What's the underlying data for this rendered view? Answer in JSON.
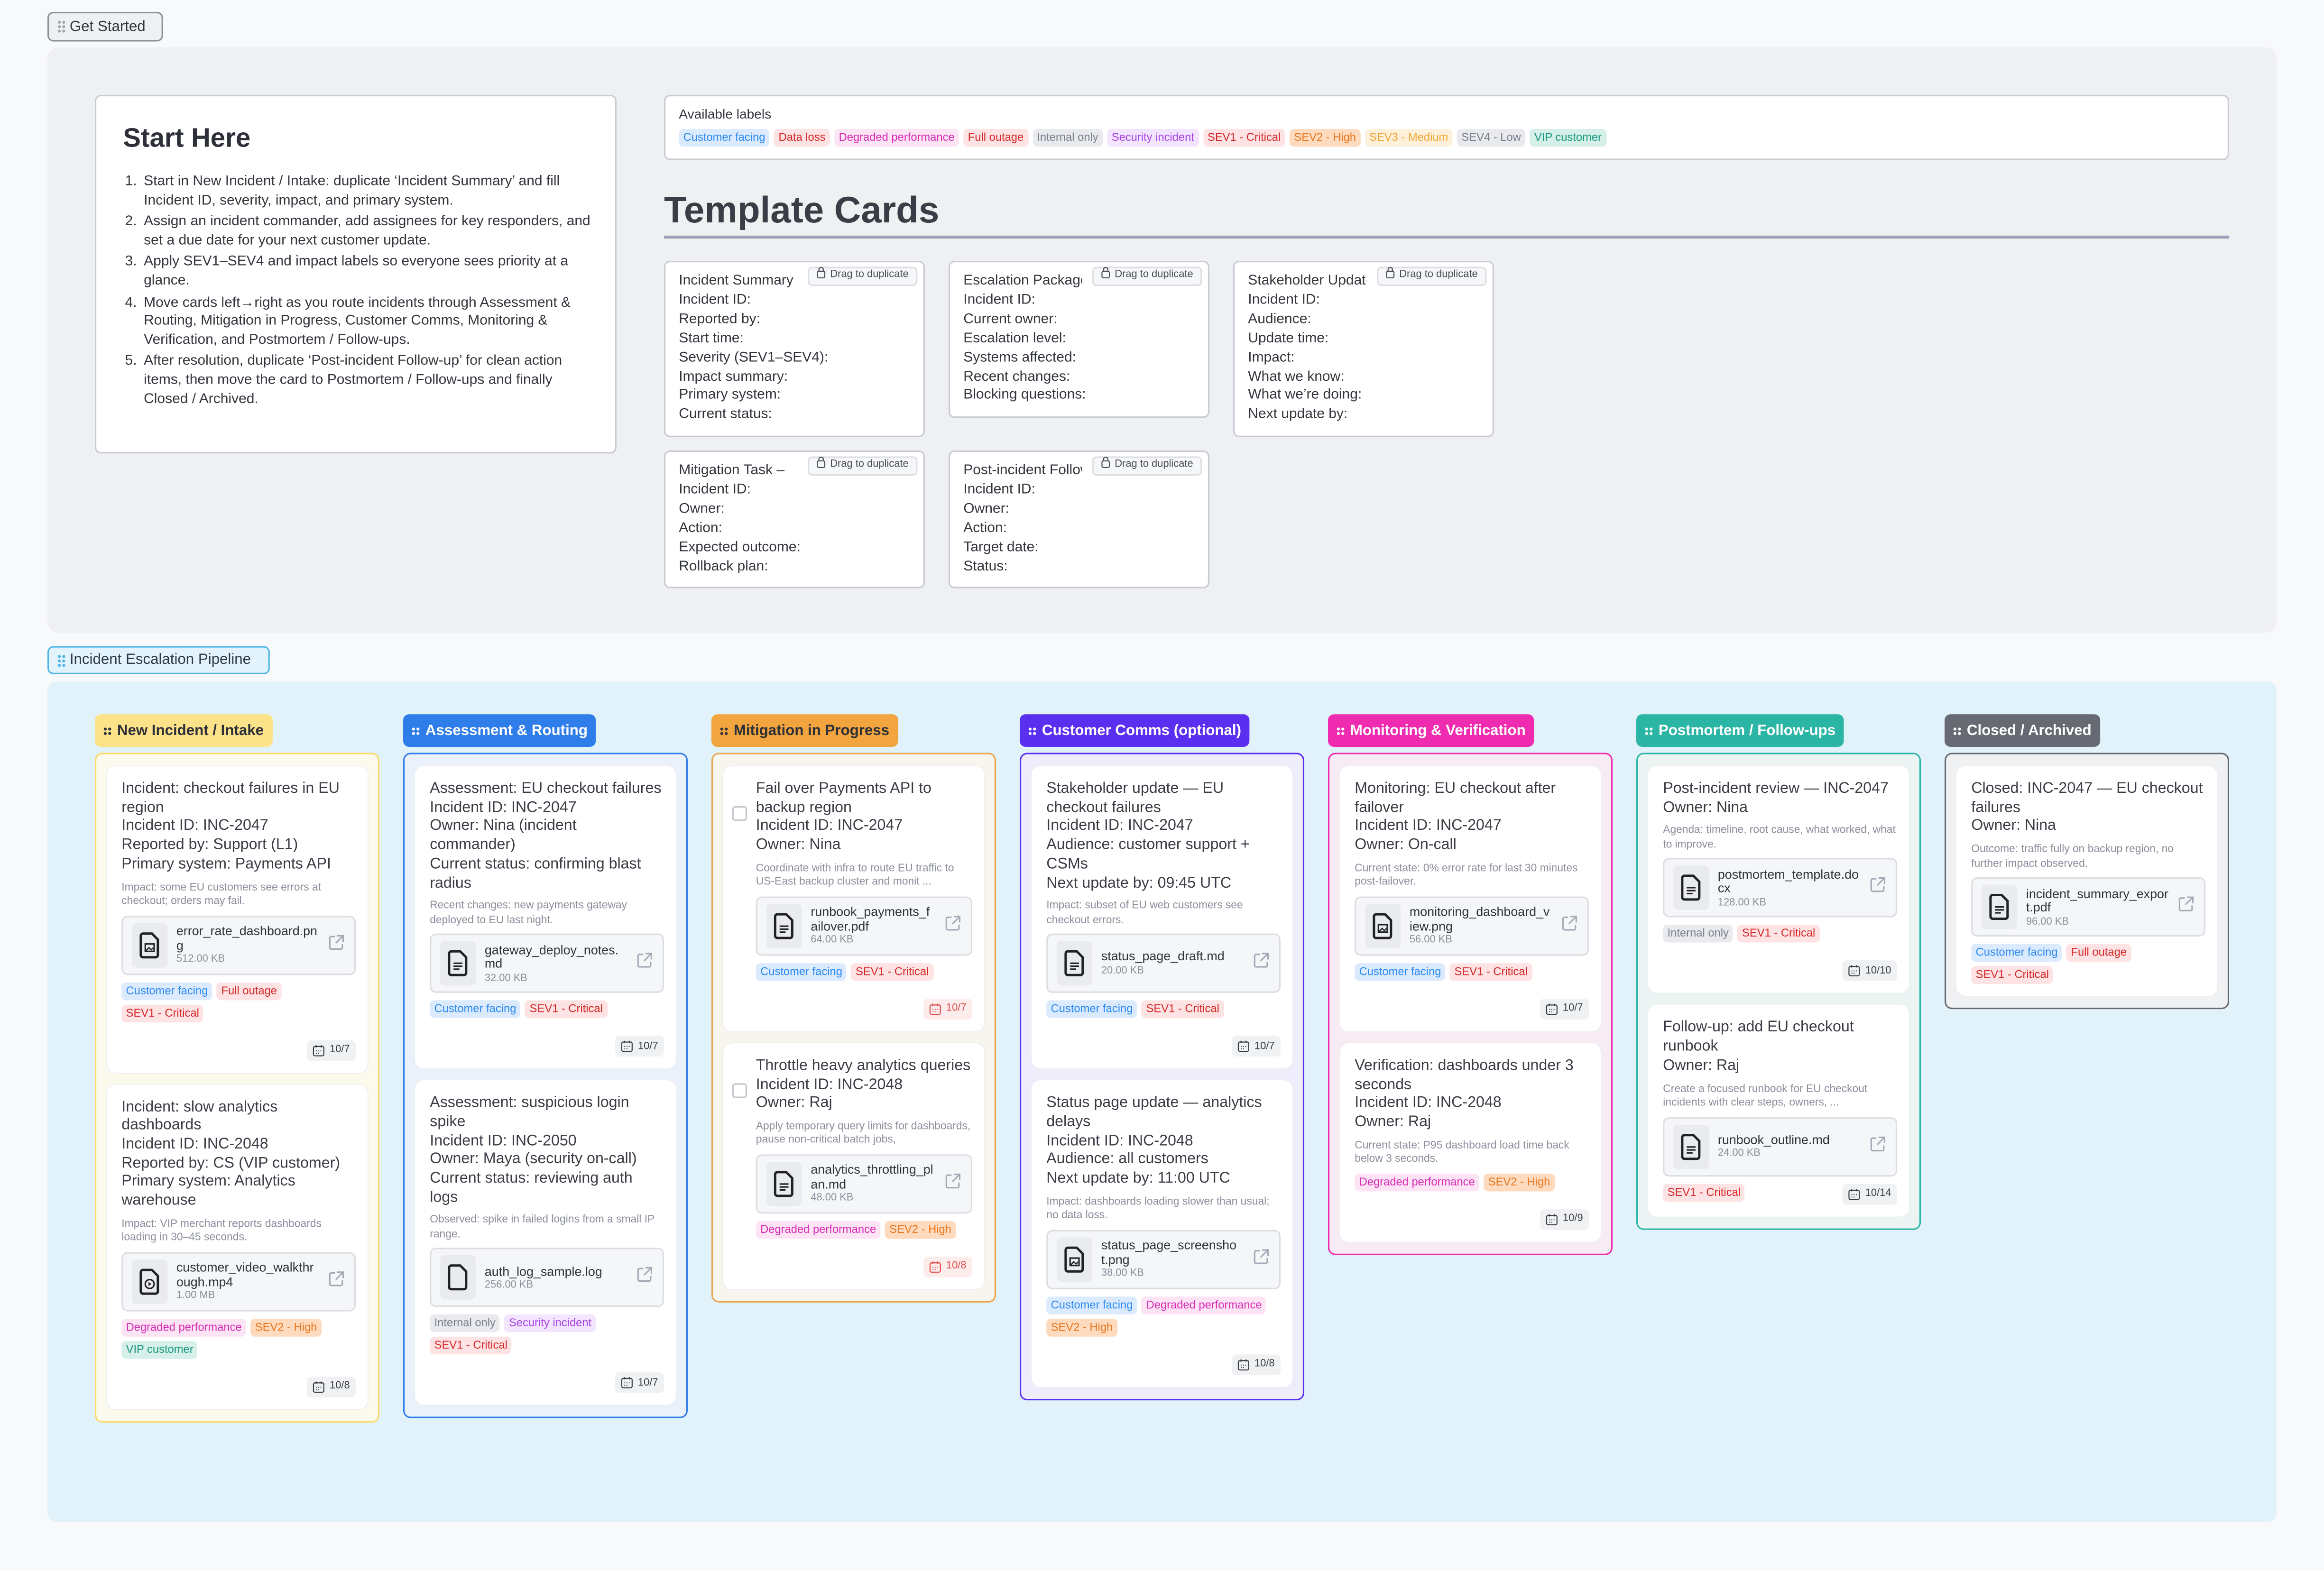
{
  "get_started": {
    "label": "Get Started"
  },
  "start_here": {
    "title": "Start Here",
    "steps": [
      "Start in New Incident / Intake: duplicate ‘Incident Summary’ and fill Incident ID, severity, impact, and primary system.",
      "Assign an incident commander, add assignees for key responders, and set a due date for your next customer update.",
      "Apply SEV1–SEV4 and impact labels so everyone sees priority at a glance.",
      "Move cards left→right as you route incidents through Assessment & Routing, Mitigation in Progress, Customer Comms, Monitoring & Verification, and Postmortem / Follow-ups.",
      "After resolution, duplicate ‘Post-incident Follow-up’ for clean action items, then move the card to Postmortem / Follow-ups and finally Closed / Archived."
    ]
  },
  "available_labels": {
    "title": "Available labels",
    "items": [
      {
        "name": "Customer facing",
        "bg": "#dceafd",
        "fg": "#2b8af0"
      },
      {
        "name": "Data loss",
        "bg": "#fde3e3",
        "fg": "#d6282a"
      },
      {
        "name": "Degraded performance",
        "bg": "#fce4f5",
        "fg": "#d62bb6"
      },
      {
        "name": "Full outage",
        "bg": "#fde3e3",
        "fg": "#d6282a"
      },
      {
        "name": "Internal only",
        "bg": "#e9eaee",
        "fg": "#7b7f8d"
      },
      {
        "name": "Security incident",
        "bg": "#f3e5fd",
        "fg": "#a544e6"
      },
      {
        "name": "SEV1 - Critical",
        "bg": "#fde3e3",
        "fg": "#d6282a"
      },
      {
        "name": "SEV2 - High",
        "bg": "#fedabe",
        "fg": "#e8781f"
      },
      {
        "name": "SEV3 - Medium",
        "bg": "#fdf1dc",
        "fg": "#f2a534"
      },
      {
        "name": "SEV4 - Low",
        "bg": "#e9eaee",
        "fg": "#7b7f8d"
      },
      {
        "name": "VIP customer",
        "bg": "#d6efe9",
        "fg": "#169a7e"
      }
    ]
  },
  "templates": {
    "heading": "Template Cards",
    "drag_label": "Drag to duplicate",
    "cards": [
      {
        "title": "Incident Summary",
        "fields": [
          "Incident ID:",
          "Reported by:",
          "Start time:",
          "Severity (SEV1–SEV4):",
          "Impact summary:",
          "Primary system:",
          "Current status:"
        ]
      },
      {
        "title": "Escalation Package",
        "fields": [
          "Incident ID:",
          "Current owner:",
          "Escalation level:",
          "Systems affected:",
          "Recent changes:",
          "Blocking questions:"
        ]
      },
      {
        "title": "Stakeholder Update",
        "fields": [
          "Incident ID:",
          "Audience:",
          "Update time:",
          "Impact:",
          "What we know:",
          "What we’re doing:",
          "Next update by:"
        ]
      },
      {
        "title": "Mitigation Task –",
        "fields": [
          "Incident ID:",
          "Owner:",
          "Action:",
          "Expected outcome:",
          "Rollback plan:"
        ]
      },
      {
        "title": "Post-incident Follow-up",
        "fields": [
          "Incident ID:",
          "Owner:",
          "Action:",
          "Target date:",
          "Status:"
        ]
      }
    ]
  },
  "pipeline": {
    "label": "Incident Escalation Pipeline",
    "columns": [
      {
        "title": "New Incident / Intake",
        "color": "#fce38a",
        "text": "#2d3038",
        "bg": "#fcfaec",
        "border": "#fcd966",
        "cards": [
          {
            "lines": [
              "Incident: checkout failures in EU region",
              "Incident ID: INC-2047",
              "Reported by: Support (L1)",
              "Primary system: Payments API"
            ],
            "desc": "Impact: some EU customers see errors at checkout; orders may fail.",
            "file": {
              "name": "error_rate_dashboard.png",
              "size": "512.00 KB",
              "icon": "image"
            },
            "labels": [
              "Customer facing",
              "Full outage",
              "SEV1 - Critical"
            ],
            "date": "10/7"
          },
          {
            "lines": [
              "Incident: slow analytics dashboards",
              "Incident ID: INC-2048",
              "Reported by: CS (VIP customer)",
              "Primary system: Analytics warehouse"
            ],
            "desc": "Impact: VIP merchant reports dashboards loading in 30–45 seconds.",
            "file": {
              "name": "customer_video_walkthrough.mp4",
              "size": "1.00 MB",
              "icon": "video"
            },
            "labels": [
              "Degraded performance",
              "SEV2 - High",
              "VIP customer"
            ],
            "date": "10/8"
          }
        ]
      },
      {
        "title": "Assessment & Routing",
        "color": "#2f7de9",
        "text": "#ffffff",
        "bg": "#eaf1fb",
        "border": "#2f7de9",
        "cards": [
          {
            "lines": [
              "Assessment: EU checkout failures",
              "Incident ID: INC-2047",
              "Owner: Nina (incident commander)",
              "Current status: confirming blast radius"
            ],
            "desc": "Recent changes: new payments gateway deployed to EU last night.",
            "file": {
              "name": "gateway_deploy_notes.md",
              "size": "32.00 KB",
              "icon": "doc"
            },
            "labels": [
              "Customer facing",
              "SEV1 - Critical"
            ],
            "date": "10/7"
          },
          {
            "lines": [
              "Assessment: suspicious login spike",
              "Incident ID: INC-2050",
              "Owner: Maya (security on-call)",
              "Current status: reviewing auth logs"
            ],
            "desc": "Observed: spike in failed logins from a small IP range.",
            "file": {
              "name": "auth_log_sample.log",
              "size": "256.00 KB",
              "icon": "blank"
            },
            "labels": [
              "Internal only",
              "Security incident",
              "SEV1 - Critical"
            ],
            "date": "10/7"
          }
        ]
      },
      {
        "title": "Mitigation in Progress",
        "color": "#f2a43e",
        "text": "#2d3038",
        "bg": "#f8f4ee",
        "border": "#eaa84c",
        "checkbox": true,
        "cards": [
          {
            "lines": [
              "Fail over Payments API to backup region",
              "Incident ID: INC-2047",
              "Owner: Nina"
            ],
            "desc": "Coordinate with infra to route EU traffic to US-East backup cluster and monit ...",
            "file": {
              "name": "runbook_payments_failover.pdf",
              "size": "64.00 KB",
              "icon": "doc"
            },
            "labels": [
              "Customer facing",
              "SEV1 - Critical"
            ],
            "date": "10/7",
            "overdue": true
          },
          {
            "lines": [
              "Throttle heavy analytics queries",
              "Incident ID: INC-2048",
              "Owner: Raj"
            ],
            "desc": "Apply temporary query limits for dashboards, pause non-critical batch jobs,",
            "file": {
              "name": "analytics_throttling_plan.md",
              "size": "48.00 KB",
              "icon": "doc"
            },
            "labels": [
              "Degraded performance",
              "SEV2 - High"
            ],
            "date": "10/8",
            "overdue": true
          }
        ]
      },
      {
        "title": "Customer Comms (optional)",
        "color": "#5b2ff0",
        "text": "#ffffff",
        "bg": "#efecfb",
        "border": "#5b2ff0",
        "cards": [
          {
            "lines": [
              "Stakeholder update — EU checkout failures",
              "Incident ID: INC-2047",
              "Audience: customer support + CSMs",
              "Next update by: 09:45 UTC"
            ],
            "desc": "Impact: subset of EU web customers see checkout errors.",
            "file": {
              "name": "status_page_draft.md",
              "size": "20.00 KB",
              "icon": "doc"
            },
            "labels": [
              "Customer facing",
              "SEV1 - Critical"
            ],
            "date": "10/7"
          },
          {
            "lines": [
              "Status page update — analytics delays",
              "Incident ID: INC-2048",
              "Audience: all customers",
              "Next update by: 11:00 UTC"
            ],
            "desc": "Impact: dashboards loading slower than usual; no data loss.",
            "file": {
              "name": "status_page_screenshot.png",
              "size": "38.00 KB",
              "icon": "image"
            },
            "labels": [
              "Customer facing",
              "Degraded performance",
              "SEV2 - High"
            ],
            "date": "10/8"
          }
        ]
      },
      {
        "title": "Monitoring & Verification",
        "color": "#ef2cb0",
        "text": "#ffffff",
        "bg": "#f8ecf4",
        "border": "#ef2cb0",
        "cards": [
          {
            "lines": [
              "Monitoring: EU checkout after failover",
              "Incident ID: INC-2047",
              "Owner: On-call"
            ],
            "desc": "Current state: 0% error rate for last 30 minutes post-failover.",
            "file": {
              "name": "monitoring_dashboard_view.png",
              "size": "56.00 KB",
              "icon": "image"
            },
            "labels": [
              "Customer facing",
              "SEV1 - Critical"
            ],
            "date": "10/7"
          },
          {
            "lines": [
              "Verification: dashboards under 3 seconds",
              "Incident ID: INC-2048",
              "Owner: Raj"
            ],
            "desc": "Current state: P95 dashboard load time back below 3 seconds.",
            "labels": [
              "Degraded performance",
              "SEV2 - High"
            ],
            "date": "10/9"
          }
        ]
      },
      {
        "title": "Postmortem / Follow-ups",
        "color": "#2bb5a5",
        "text": "#ffffff",
        "bg": "#ebf4f3",
        "border": "#2bb5a5",
        "cards": [
          {
            "lines": [
              "Post-incident review — INC-2047",
              "Owner: Nina"
            ],
            "desc": "Agenda: timeline, root cause, what worked, what to improve.",
            "file": {
              "name": "postmortem_template.docx",
              "size": "128.00 KB",
              "icon": "doc"
            },
            "labels": [
              "Internal only",
              "SEV1 - Critical"
            ],
            "date": "10/10"
          },
          {
            "lines": [
              "Follow-up: add EU checkout runbook",
              "Owner: Raj"
            ],
            "desc": "Create a focused runbook for EU checkout incidents with clear steps, owners, ...",
            "file": {
              "name": "runbook_outline.md",
              "size": "24.00 KB",
              "icon": "doc"
            },
            "labels": [
              "SEV1 - Critical"
            ],
            "date": "10/14"
          }
        ]
      },
      {
        "title": "Closed / Archived",
        "color": "#676a72",
        "text": "#ffffff",
        "bg": "#f0f1f3",
        "border": "#676a72",
        "cards": [
          {
            "lines": [
              "Closed: INC-2047 — EU checkout failures",
              "Owner: Nina"
            ],
            "desc": "Outcome: traffic fully on backup region, no further impact observed.",
            "file": {
              "name": "incident_summary_export.pdf",
              "size": "96.00 KB",
              "icon": "doc"
            },
            "labels": [
              "Customer facing",
              "Full outage",
              "SEV1 - Critical"
            ]
          }
        ]
      }
    ]
  }
}
